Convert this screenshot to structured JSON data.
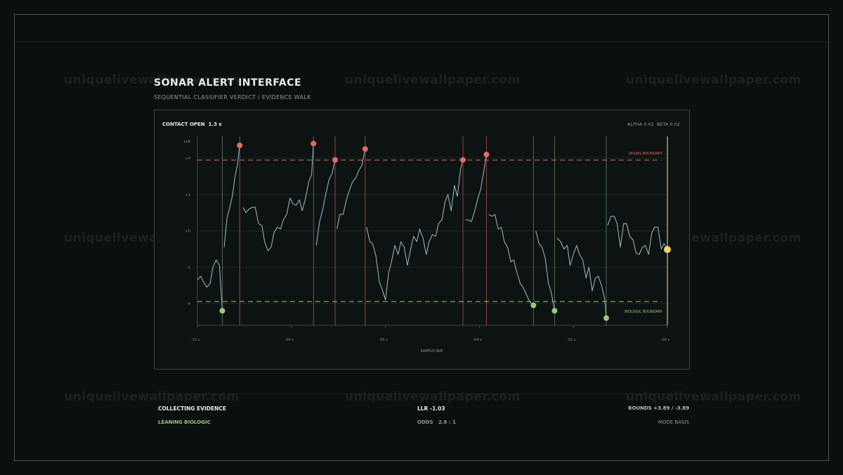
{
  "watermark": "uniquelivewallpaper.com",
  "header": {
    "title": "SONAR ALERT INTERFACE",
    "subtitle": "SEQUENTIAL CLASSIFIER VERDICT / EVIDENCE WALK"
  },
  "panel": {
    "contact_label": "CONTACT OPEN",
    "contact_value": "1.3 s",
    "alpha_label": "ALPHA",
    "alpha": "0.02",
    "beta_label": "BETA",
    "beta": "0.02"
  },
  "footer": {
    "state": "COLLECTING EVIDENCE",
    "leaning": "LEANING BIOLOGIC",
    "llr_label": "LLR",
    "llr_value": "-1.03",
    "odds_label": "ODDS",
    "odds_value": "2.8 : 1",
    "bounds_label": "BOUNDS",
    "bounds_value": "+3.89 / -3.89",
    "mode_label": "MODE",
    "mode_value": "BASIS"
  },
  "colors": {
    "trace": "#8fb2b8",
    "vessel": "#e46b5d",
    "biologic": "#98c87e",
    "current": "#f2d26b",
    "grid": "#1d2726",
    "axis": "#3e4847"
  },
  "chart_data": {
    "type": "line",
    "title": "",
    "xlabel": "SAMPLE AGE",
    "ylabel": "LLR",
    "xlim": [
      -10,
      0
    ],
    "ylim": [
      -5.2,
      5.2
    ],
    "x_ticks": [
      -10,
      -8,
      -6,
      -4,
      -2,
      0
    ],
    "x_tick_labels": [
      "-10 s",
      "-08 s",
      "-06 s",
      "-04 s",
      "-02 s",
      "-00 s"
    ],
    "y_ticks": [
      4,
      2,
      0,
      -2,
      -4
    ],
    "y_tick_labels": [
      "+4",
      "+2",
      "+0",
      "-2",
      "-4"
    ],
    "grid": true,
    "thresholds": [
      {
        "name": "VESSEL BOUNDARY",
        "value": 3.89,
        "color": "#e46b5d"
      },
      {
        "name": "BIOLOGIC BOUNDARY",
        "value": -3.89,
        "color": "#98c87e"
      }
    ],
    "series": [
      {
        "segments": [
          {
            "x": [
              -10.0,
              -9.93,
              -9.87,
              -9.8,
              -9.73,
              -9.67,
              -9.6,
              -9.53,
              -9.47
            ],
            "y": [
              -2.7,
              -2.5,
              -2.8,
              -3.1,
              -2.9,
              -2.0,
              -1.6,
              -1.9,
              -4.4
            ]
          },
          {
            "x": [
              -9.43,
              -9.37,
              -9.3,
              -9.25,
              -9.2,
              -9.15,
              -9.1
            ],
            "y": [
              -0.9,
              0.7,
              1.4,
              2.0,
              3.0,
              3.6,
              4.7
            ]
          },
          {
            "x": [
              -9.03,
              -8.97,
              -8.9,
              -8.83,
              -8.77,
              -8.7,
              -8.63,
              -8.57,
              -8.5,
              -8.43,
              -8.37,
              -8.3,
              -8.23,
              -8.17,
              -8.1,
              -8.03,
              -7.97,
              -7.9,
              -7.83,
              -7.77,
              -7.7,
              -7.63,
              -7.57,
              -7.53
            ],
            "y": [
              1.3,
              1.0,
              1.2,
              1.3,
              1.3,
              0.4,
              0.3,
              -0.6,
              -1.1,
              -0.9,
              -0.1,
              0.2,
              0.1,
              0.6,
              0.9,
              1.8,
              1.5,
              1.4,
              1.7,
              1.1,
              1.8,
              2.7,
              3.1,
              4.8
            ]
          },
          {
            "x": [
              -7.47,
              -7.4,
              -7.33,
              -7.27,
              -7.2,
              -7.13,
              -7.07
            ],
            "y": [
              -0.8,
              0.5,
              1.2,
              2.0,
              2.8,
              3.2,
              3.9
            ]
          },
          {
            "x": [
              -7.03,
              -6.97,
              -6.9,
              -6.83,
              -6.77,
              -6.7,
              -6.63,
              -6.57,
              -6.5,
              -6.43
            ],
            "y": [
              0.1,
              0.9,
              0.9,
              1.7,
              2.2,
              2.7,
              2.9,
              3.3,
              3.6,
              4.5
            ]
          },
          {
            "x": [
              -6.4,
              -6.33,
              -6.27,
              -6.2,
              -6.13,
              -6.07,
              -6.0,
              -5.93,
              -5.87,
              -5.8,
              -5.73,
              -5.67,
              -5.6,
              -5.53,
              -5.47,
              -5.4,
              -5.33,
              -5.27,
              -5.2,
              -5.13,
              -5.07,
              -5.0,
              -4.93,
              -4.87,
              -4.8,
              -4.73,
              -4.67,
              -4.6,
              -4.53,
              -4.47,
              -4.4,
              -4.35
            ],
            "y": [
              0.2,
              -0.6,
              -0.7,
              -1.4,
              -2.8,
              -3.2,
              -3.8,
              -2.3,
              -1.7,
              -0.8,
              -1.3,
              -0.6,
              -0.9,
              -1.9,
              -1.1,
              -0.3,
              -0.6,
              0.1,
              -0.4,
              -1.3,
              -0.6,
              -0.2,
              -0.3,
              0.4,
              0.6,
              1.6,
              2.0,
              1.1,
              2.5,
              1.9,
              3.4,
              3.9
            ]
          },
          {
            "x": [
              -4.3,
              -4.23,
              -4.17,
              -4.1,
              -4.03,
              -3.97,
              -3.9,
              -3.85
            ],
            "y": [
              0.6,
              0.6,
              0.5,
              1.1,
              1.8,
              2.3,
              3.4,
              4.2
            ]
          },
          {
            "x": [
              -3.8,
              -3.73,
              -3.67,
              -3.6,
              -3.53,
              -3.47,
              -3.4,
              -3.33,
              -3.27,
              -3.2,
              -3.13,
              -3.07,
              -3.0,
              -2.93,
              -2.85
            ],
            "y": [
              0.9,
              0.8,
              0.9,
              0.1,
              0.2,
              -0.6,
              -0.9,
              -1.7,
              -1.6,
              -2.3,
              -2.9,
              -3.1,
              -3.5,
              -3.9,
              -4.1
            ]
          },
          {
            "x": [
              -2.8,
              -2.73,
              -2.67,
              -2.6,
              -2.53,
              -2.47,
              -2.4
            ],
            "y": [
              0.0,
              -0.7,
              -0.9,
              -1.5,
              -2.9,
              -3.4,
              -4.4
            ]
          },
          {
            "x": [
              -2.35,
              -2.27,
              -2.2,
              -2.13,
              -2.07,
              -2.0,
              -1.93,
              -1.87,
              -1.8,
              -1.73,
              -1.67,
              -1.6,
              -1.53,
              -1.47,
              -1.4,
              -1.33,
              -1.3
            ],
            "y": [
              -0.4,
              -0.6,
              -1.0,
              -0.8,
              -1.9,
              -1.3,
              -0.8,
              -1.3,
              -1.6,
              -2.6,
              -2.0,
              -3.3,
              -2.6,
              -2.5,
              -3.0,
              -3.8,
              -4.8
            ]
          },
          {
            "x": [
              -1.27,
              -1.2,
              -1.13,
              -1.07,
              -1.0,
              -0.93,
              -0.87,
              -0.8,
              -0.73,
              -0.67,
              -0.6,
              -0.53,
              -0.47,
              -0.4,
              -0.33,
              -0.27,
              -0.2,
              -0.13,
              -0.07,
              0.0
            ],
            "y": [
              0.3,
              0.8,
              0.8,
              0.4,
              -0.9,
              0.4,
              0.4,
              -0.3,
              -0.5,
              -1.2,
              -1.3,
              -0.9,
              -0.8,
              -1.3,
              -0.1,
              0.2,
              0.2,
              -1.0,
              -0.7,
              -1.03
            ]
          }
        ]
      }
    ],
    "vessel_decisions": [
      {
        "x": -9.1,
        "y": 4.7
      },
      {
        "x": -7.53,
        "y": 4.8
      },
      {
        "x": -7.07,
        "y": 3.9
      },
      {
        "x": -6.43,
        "y": 4.5
      },
      {
        "x": -4.35,
        "y": 3.9
      },
      {
        "x": -3.85,
        "y": 4.2
      }
    ],
    "biologic_decisions": [
      {
        "x": -9.47,
        "y": -4.4
      },
      {
        "x": -2.85,
        "y": -4.1
      },
      {
        "x": -2.4,
        "y": -4.4
      },
      {
        "x": -1.3,
        "y": -4.8
      }
    ],
    "current": {
      "x": 0.0,
      "y": -1.03
    }
  }
}
